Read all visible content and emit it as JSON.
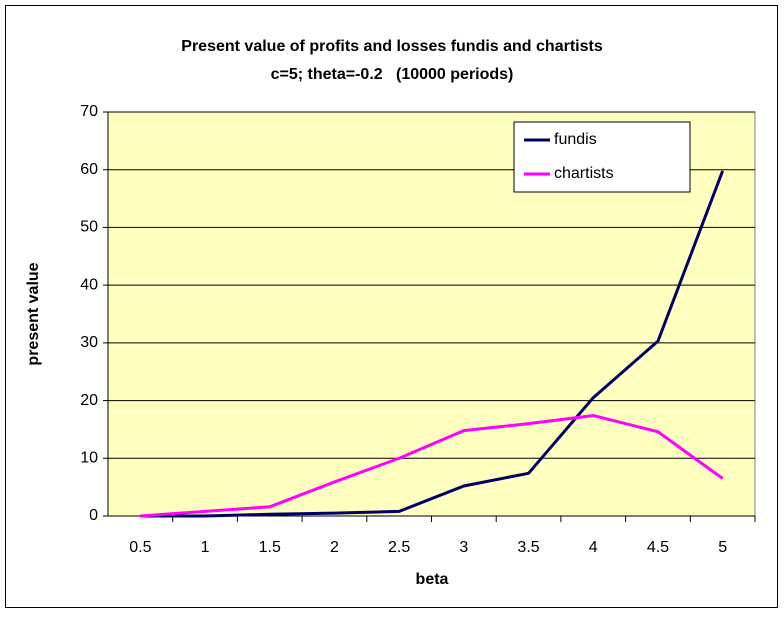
{
  "chart_data": {
    "type": "line",
    "title": "Present value of profits and losses fundis and chartists",
    "subtitle": "c=5; theta=-0.2   (10000 periods)",
    "x_label": "beta",
    "y_label": "present value",
    "categories": [
      "0.5",
      "1",
      "1.5",
      "2",
      "2.5",
      "3",
      "3.5",
      "4",
      "4.5",
      "5"
    ],
    "series": [
      {
        "name": "fundis",
        "color": "#000066",
        "values": [
          0,
          0,
          0.3,
          0.5,
          0.8,
          5.2,
          7.4,
          20.5,
          30.3,
          59.8
        ]
      },
      {
        "name": "chartists",
        "color": "#ff00ff",
        "values": [
          0,
          0.8,
          1.6,
          5.9,
          10,
          14.8,
          16,
          17.4,
          14.6,
          6.5
        ]
      }
    ],
    "ylim": [
      0,
      70
    ],
    "yticks": [
      0,
      10,
      20,
      30,
      40,
      50,
      60,
      70
    ],
    "grid": true,
    "legend": "upper right",
    "plot_background": "#ffffc0"
  }
}
